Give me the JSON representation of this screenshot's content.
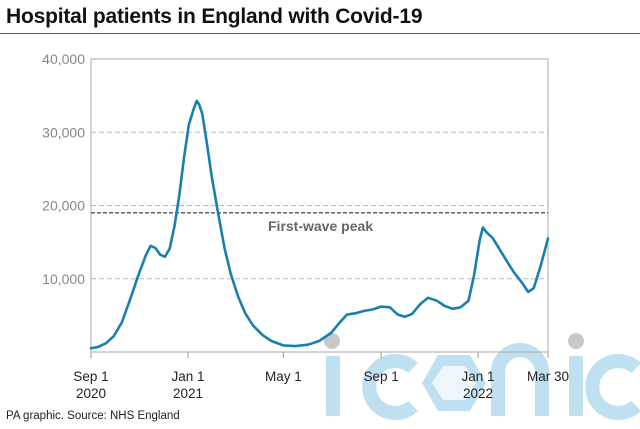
{
  "header": {
    "title": "Hospital patients in England with Covid-19"
  },
  "footer": {
    "source": "PA graphic. Source: NHS England"
  },
  "colors": {
    "line": "#1a7fb0",
    "grid": "#bbbbbb",
    "reference": "#555555",
    "annotation": "#666666",
    "watermark": "#a9d6ec"
  },
  "chart_data": {
    "type": "line",
    "title": "Hospital patients in England with Covid-19",
    "xlabel": "",
    "ylabel": "",
    "x_range": [
      "2020-09-01",
      "2022-03-30"
    ],
    "ylim": [
      0,
      40000
    ],
    "y_ticks": [
      {
        "value": 10000,
        "label": "10,000"
      },
      {
        "value": 20000,
        "label": "20,000"
      },
      {
        "value": 30000,
        "label": "30,000"
      },
      {
        "value": 40000,
        "label": "40,000"
      }
    ],
    "x_ticks": [
      {
        "date": "2020-09-01",
        "line1": "Sep 1",
        "line2": "2020"
      },
      {
        "date": "2021-01-01",
        "line1": "Jan 1",
        "line2": "2021"
      },
      {
        "date": "2021-05-01",
        "line1": "May 1",
        "line2": ""
      },
      {
        "date": "2021-09-01",
        "line1": "Sep 1",
        "line2": ""
      },
      {
        "date": "2022-01-01",
        "line1": "Jan 1",
        "line2": "2022"
      },
      {
        "date": "2022-03-30",
        "line1": "Mar 30",
        "line2": ""
      }
    ],
    "grid": true,
    "reference_line": {
      "value": 19000,
      "label": "First-wave peak"
    },
    "series": [
      {
        "points": [
          [
            "2020-09-01",
            500
          ],
          [
            "2020-09-10",
            700
          ],
          [
            "2020-09-20",
            1200
          ],
          [
            "2020-09-30",
            2200
          ],
          [
            "2020-10-10",
            4100
          ],
          [
            "2020-10-20",
            7100
          ],
          [
            "2020-10-30",
            10300
          ],
          [
            "2020-11-09",
            13200
          ],
          [
            "2020-11-15",
            14500
          ],
          [
            "2020-11-21",
            14200
          ],
          [
            "2020-11-27",
            13300
          ],
          [
            "2020-12-03",
            13000
          ],
          [
            "2020-12-09",
            14100
          ],
          [
            "2020-12-15",
            17200
          ],
          [
            "2020-12-21",
            21300
          ],
          [
            "2020-12-27",
            26500
          ],
          [
            "2021-01-02",
            31000
          ],
          [
            "2021-01-08",
            33100
          ],
          [
            "2021-01-12",
            34300
          ],
          [
            "2021-01-15",
            33800
          ],
          [
            "2021-01-19",
            32500
          ],
          [
            "2021-01-25",
            28400
          ],
          [
            "2021-01-31",
            23900
          ],
          [
            "2021-02-08",
            18900
          ],
          [
            "2021-02-16",
            14200
          ],
          [
            "2021-02-24",
            10600
          ],
          [
            "2021-03-05",
            7600
          ],
          [
            "2021-03-14",
            5300
          ],
          [
            "2021-03-24",
            3600
          ],
          [
            "2021-04-05",
            2300
          ],
          [
            "2021-04-16",
            1500
          ],
          [
            "2021-05-01",
            900
          ],
          [
            "2021-05-16",
            800
          ],
          [
            "2021-06-01",
            1000
          ],
          [
            "2021-06-15",
            1500
          ],
          [
            "2021-06-30",
            2600
          ],
          [
            "2021-07-10",
            3900
          ],
          [
            "2021-07-20",
            5100
          ],
          [
            "2021-07-31",
            5300
          ],
          [
            "2021-08-10",
            5600
          ],
          [
            "2021-08-21",
            5800
          ],
          [
            "2021-09-01",
            6200
          ],
          [
            "2021-09-12",
            6100
          ],
          [
            "2021-09-22",
            5100
          ],
          [
            "2021-10-01",
            4800
          ],
          [
            "2021-10-10",
            5200
          ],
          [
            "2021-10-20",
            6500
          ],
          [
            "2021-10-30",
            7400
          ],
          [
            "2021-11-10",
            7000
          ],
          [
            "2021-11-20",
            6300
          ],
          [
            "2021-11-30",
            5900
          ],
          [
            "2021-12-10",
            6100
          ],
          [
            "2021-12-20",
            7000
          ],
          [
            "2021-12-27",
            10500
          ],
          [
            "2022-01-03",
            15200
          ],
          [
            "2022-01-07",
            17000
          ],
          [
            "2022-01-12",
            16300
          ],
          [
            "2022-01-19",
            15600
          ],
          [
            "2022-01-26",
            14400
          ],
          [
            "2022-02-05",
            12600
          ],
          [
            "2022-02-15",
            10900
          ],
          [
            "2022-02-25",
            9500
          ],
          [
            "2022-03-05",
            8200
          ],
          [
            "2022-03-12",
            8700
          ],
          [
            "2022-03-20",
            11500
          ],
          [
            "2022-03-30",
            15500
          ]
        ]
      }
    ]
  }
}
